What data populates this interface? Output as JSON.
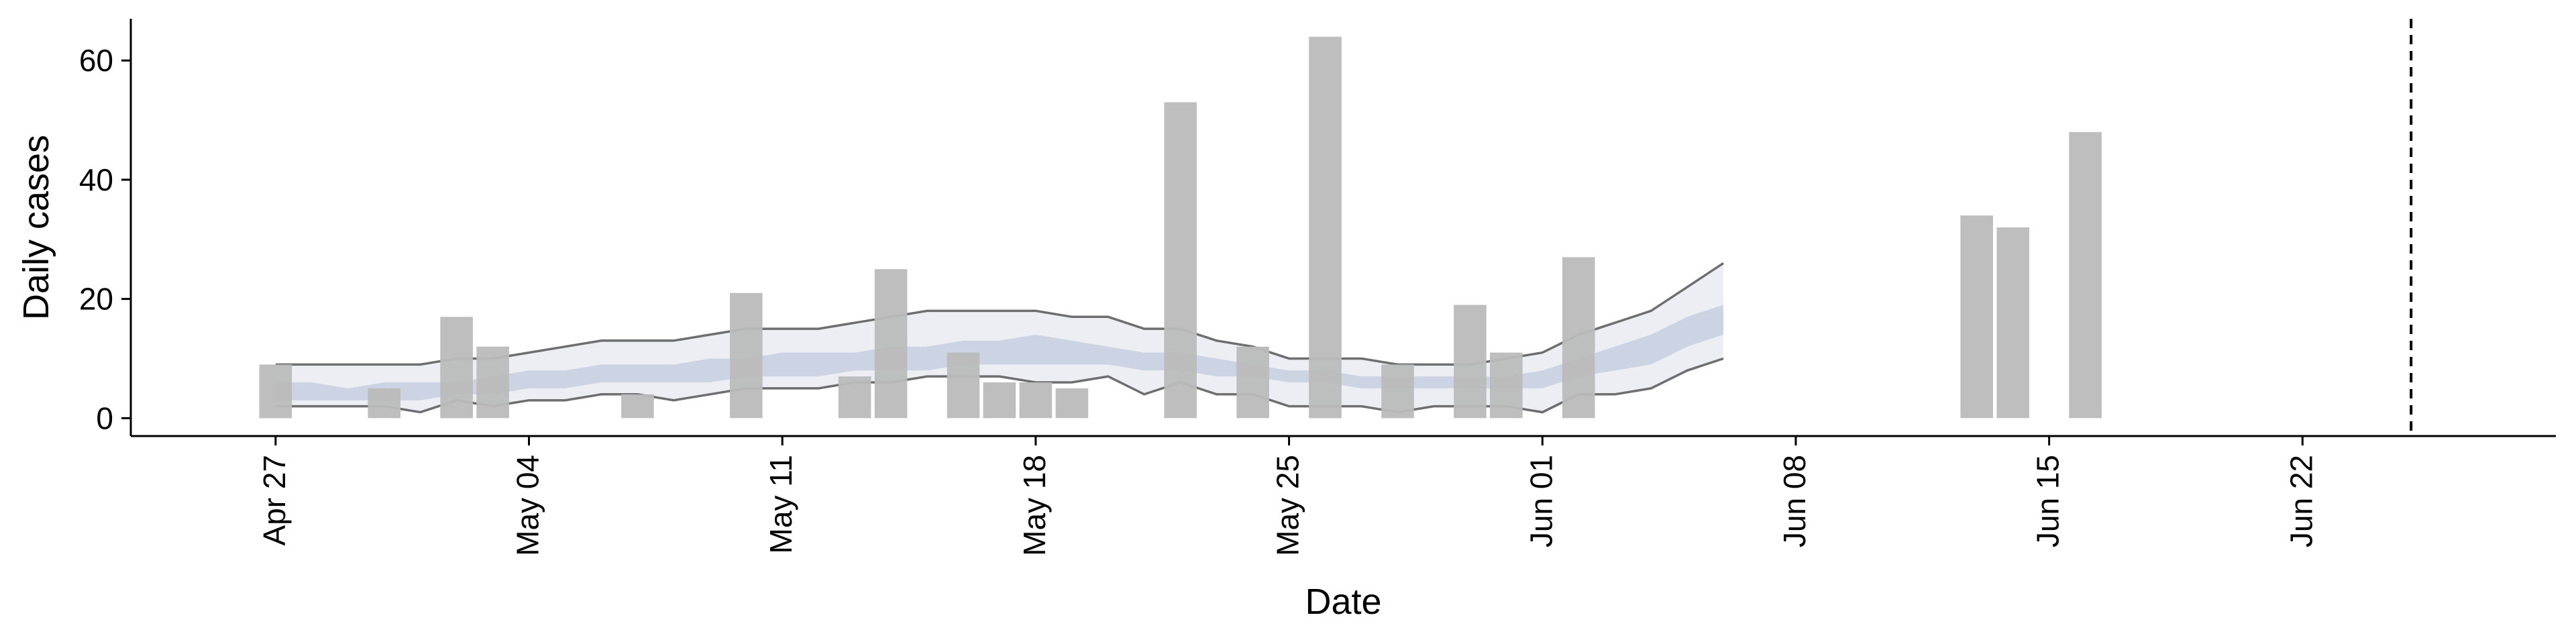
{
  "chart_data": {
    "type": "bar",
    "xlabel": "Date",
    "ylabel": "Daily cases",
    "x_axis": {
      "start": "2020-04-23",
      "end": "2020-06-29",
      "tick_labels": [
        "Apr 27",
        "May 04",
        "May 11",
        "May 18",
        "May 25",
        "Jun 01",
        "Jun 08",
        "Jun 15",
        "Jun 22"
      ],
      "tick_dates": [
        "2020-04-27",
        "2020-05-04",
        "2020-05-11",
        "2020-05-18",
        "2020-05-25",
        "2020-06-01",
        "2020-06-08",
        "2020-06-15",
        "2020-06-22"
      ]
    },
    "y_axis": {
      "range": [
        -3,
        67
      ],
      "tick_values": [
        0,
        20,
        40,
        60
      ],
      "tick_labels": [
        "0",
        "20",
        "40",
        "60"
      ]
    },
    "bars": {
      "color": "#bababa",
      "dates": [
        "2020-04-27",
        "2020-04-30",
        "2020-05-02",
        "2020-05-03",
        "2020-05-07",
        "2020-05-10",
        "2020-05-13",
        "2020-05-14",
        "2020-05-16",
        "2020-05-17",
        "2020-05-18",
        "2020-05-19",
        "2020-05-22",
        "2020-05-24",
        "2020-05-26",
        "2020-05-28",
        "2020-05-30",
        "2020-05-31",
        "2020-06-02",
        "2020-06-13",
        "2020-06-14",
        "2020-06-16"
      ],
      "values": [
        9,
        5,
        17,
        12,
        4,
        21,
        7,
        25,
        11,
        6,
        6,
        5,
        53,
        12,
        64,
        9,
        19,
        11,
        27,
        34,
        32,
        48
      ]
    },
    "estimate_bands": {
      "dates": [
        "2020-04-27",
        "2020-04-28",
        "2020-04-29",
        "2020-04-30",
        "2020-05-01",
        "2020-05-02",
        "2020-05-03",
        "2020-05-04",
        "2020-05-05",
        "2020-05-06",
        "2020-05-07",
        "2020-05-08",
        "2020-05-09",
        "2020-05-10",
        "2020-05-11",
        "2020-05-12",
        "2020-05-13",
        "2020-05-14",
        "2020-05-15",
        "2020-05-16",
        "2020-05-17",
        "2020-05-18",
        "2020-05-19",
        "2020-05-20",
        "2020-05-21",
        "2020-05-22",
        "2020-05-23",
        "2020-05-24",
        "2020-05-25",
        "2020-05-26",
        "2020-05-27",
        "2020-05-28",
        "2020-05-29",
        "2020-05-30",
        "2020-05-31",
        "2020-06-01",
        "2020-06-02",
        "2020-06-03",
        "2020-06-04",
        "2020-06-05",
        "2020-06-06"
      ],
      "outer_lower": [
        2,
        2,
        2,
        2,
        1,
        3,
        2,
        3,
        3,
        4,
        4,
        3,
        4,
        5,
        5,
        5,
        6,
        6,
        7,
        7,
        7,
        6,
        6,
        7,
        4,
        6,
        4,
        4,
        2,
        2,
        2,
        1,
        2,
        2,
        2,
        1,
        4,
        4,
        5,
        8,
        10
      ],
      "outer_upper": [
        9,
        9,
        9,
        9,
        9,
        10,
        10,
        11,
        12,
        13,
        13,
        13,
        14,
        15,
        15,
        15,
        16,
        17,
        18,
        18,
        18,
        18,
        17,
        17,
        15,
        15,
        13,
        12,
        10,
        10,
        10,
        9,
        9,
        9,
        10,
        11,
        14,
        16,
        18,
        22,
        26
      ],
      "inner_lower": [
        3,
        3,
        3,
        3,
        3,
        4,
        4,
        5,
        5,
        6,
        6,
        6,
        6,
        7,
        7,
        7,
        8,
        8,
        8,
        9,
        9,
        9,
        9,
        9,
        8,
        8,
        7,
        7,
        6,
        6,
        5,
        5,
        5,
        5,
        5,
        5,
        7,
        8,
        9,
        12,
        14
      ],
      "inner_upper": [
        6,
        6,
        5,
        6,
        6,
        6,
        7,
        8,
        8,
        9,
        9,
        9,
        10,
        10,
        11,
        11,
        11,
        12,
        12,
        13,
        13,
        14,
        13,
        12,
        11,
        11,
        10,
        9,
        8,
        8,
        7,
        7,
        7,
        7,
        7,
        8,
        10,
        12,
        14,
        17,
        19
      ],
      "outer_color": "#eceef4",
      "inner_color": "#ccd3e3",
      "edge_color": "#6e6e6e"
    },
    "reference_line": {
      "date": "2020-06-25",
      "style": "dashed",
      "color": "#000000"
    },
    "grid": false,
    "legend": "none"
  }
}
